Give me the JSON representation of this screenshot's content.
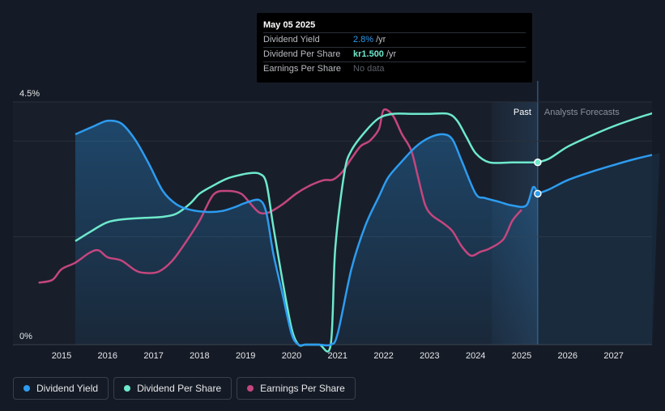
{
  "chart_data": {
    "type": "line",
    "title": "",
    "xlabel": "",
    "ylabel": "",
    "ylim": [
      0,
      4.5
    ],
    "y_tick_labels": [
      "4.5%",
      "0%"
    ],
    "x_tick_labels": [
      "2015",
      "2016",
      "2017",
      "2018",
      "2019",
      "2020",
      "2021",
      "2022",
      "2023",
      "2024",
      "2025",
      "2026",
      "2027"
    ],
    "past_label": "Past",
    "forecast_label": "Analysts Forecasts",
    "past_end": 2025.35,
    "forecast_start": 2024.35,
    "series": [
      {
        "name": "Dividend Yield",
        "color": "#2d9cf0",
        "x": [
          2015.3,
          2015.7,
          2016.0,
          2016.3,
          2016.6,
          2016.9,
          2017.2,
          2017.5,
          2017.8,
          2018.2,
          2018.5,
          2018.8,
          2019.0,
          2019.3,
          2019.45,
          2019.6,
          2019.8,
          2020.0,
          2020.15,
          2020.3,
          2020.6,
          2020.85,
          2021.0,
          2021.3,
          2021.6,
          2021.9,
          2022.1,
          2022.4,
          2022.7,
          2023.0,
          2023.3,
          2023.5,
          2023.7,
          2024.0,
          2024.2,
          2024.5,
          2024.8,
          2025.1,
          2025.25,
          2025.35
        ],
        "values": [
          3.9,
          4.05,
          4.15,
          4.1,
          3.8,
          3.35,
          2.85,
          2.6,
          2.5,
          2.46,
          2.48,
          2.56,
          2.63,
          2.68,
          2.45,
          1.7,
          0.95,
          0.2,
          0.0,
          0.0,
          0.0,
          0.0,
          0.2,
          1.4,
          2.2,
          2.75,
          3.1,
          3.4,
          3.67,
          3.84,
          3.9,
          3.8,
          3.4,
          2.8,
          2.72,
          2.65,
          2.58,
          2.58,
          2.92,
          2.8
        ]
      },
      {
        "name": "Dividend Per Share",
        "color": "#6ee9cc",
        "x": [
          2015.3,
          2015.6,
          2016.0,
          2016.4,
          2016.8,
          2017.2,
          2017.5,
          2017.8,
          2018.0,
          2018.3,
          2018.6,
          2018.9,
          2019.1,
          2019.3,
          2019.45,
          2019.6,
          2019.8,
          2020.0,
          2020.15,
          2020.3,
          2020.6,
          2020.85,
          2020.95,
          2021.15,
          2021.3,
          2021.6,
          2021.9,
          2022.2,
          2022.6,
          2023.0,
          2023.4,
          2023.6,
          2023.8,
          2024.0,
          2024.3,
          2024.8,
          2025.35
        ],
        "values": [
          1.92,
          2.08,
          2.27,
          2.33,
          2.35,
          2.37,
          2.43,
          2.62,
          2.8,
          2.95,
          3.08,
          3.15,
          3.18,
          3.17,
          3.0,
          2.2,
          1.2,
          0.3,
          0.0,
          0.0,
          0.0,
          0.0,
          1.8,
          3.2,
          3.6,
          3.95,
          4.2,
          4.28,
          4.28,
          4.28,
          4.28,
          4.15,
          3.85,
          3.55,
          3.38,
          3.38,
          3.38
        ]
      },
      {
        "name": "Earnings Per Share",
        "color": "#c4467e",
        "x": [
          2014.5,
          2014.8,
          2015.0,
          2015.3,
          2015.6,
          2015.8,
          2016.0,
          2016.3,
          2016.6,
          2016.8,
          2017.1,
          2017.4,
          2017.7,
          2018.0,
          2018.3,
          2018.6,
          2018.9,
          2019.1,
          2019.3,
          2019.5,
          2019.8,
          2020.1,
          2020.4,
          2020.7,
          2020.9,
          2021.1,
          2021.3,
          2021.5,
          2021.7,
          2021.9,
          2022.0,
          2022.2,
          2022.4,
          2022.6,
          2022.75,
          2022.9,
          2023.05,
          2023.3,
          2023.5,
          2023.7,
          2023.9,
          2024.1,
          2024.3,
          2024.6,
          2024.8,
          2025.0
        ],
        "values": [
          1.15,
          1.2,
          1.4,
          1.52,
          1.7,
          1.75,
          1.62,
          1.56,
          1.38,
          1.33,
          1.35,
          1.55,
          1.9,
          2.3,
          2.78,
          2.85,
          2.8,
          2.62,
          2.45,
          2.45,
          2.6,
          2.8,
          2.95,
          3.05,
          3.06,
          3.2,
          3.45,
          3.68,
          3.78,
          4.0,
          4.35,
          4.25,
          3.9,
          3.6,
          3.1,
          2.6,
          2.4,
          2.25,
          2.1,
          1.82,
          1.65,
          1.72,
          1.78,
          1.95,
          2.3,
          2.5
        ]
      }
    ],
    "forecast_series": [
      {
        "name": "Dividend Yield",
        "color": "#2d9cf0",
        "x": [
          2025.35,
          2025.6,
          2026.0,
          2026.5,
          2027.0,
          2027.5,
          2028.0
        ],
        "values": [
          2.8,
          2.88,
          3.05,
          3.2,
          3.33,
          3.45,
          3.55
        ]
      },
      {
        "name": "Dividend Per Share",
        "color": "#6ee9cc",
        "x": [
          2025.35,
          2025.6,
          2026.0,
          2026.5,
          2027.0,
          2027.5,
          2028.0
        ],
        "values": [
          3.38,
          3.45,
          3.67,
          3.87,
          4.05,
          4.2,
          4.33
        ]
      }
    ]
  },
  "tooltip": {
    "date": "May 05 2025",
    "rows": [
      {
        "label": "Dividend Yield",
        "value": "2.8%",
        "unit": "/yr"
      },
      {
        "label": "Dividend Per Share",
        "value": "kr1.500",
        "unit": "/yr"
      },
      {
        "label": "Earnings Per Share",
        "value": "No data"
      }
    ]
  },
  "legend": [
    {
      "label": "Dividend Yield",
      "color": "#2d9cf0"
    },
    {
      "label": "Dividend Per Share",
      "color": "#6ee9cc"
    },
    {
      "label": "Earnings Per Share",
      "color": "#c4467e"
    }
  ]
}
